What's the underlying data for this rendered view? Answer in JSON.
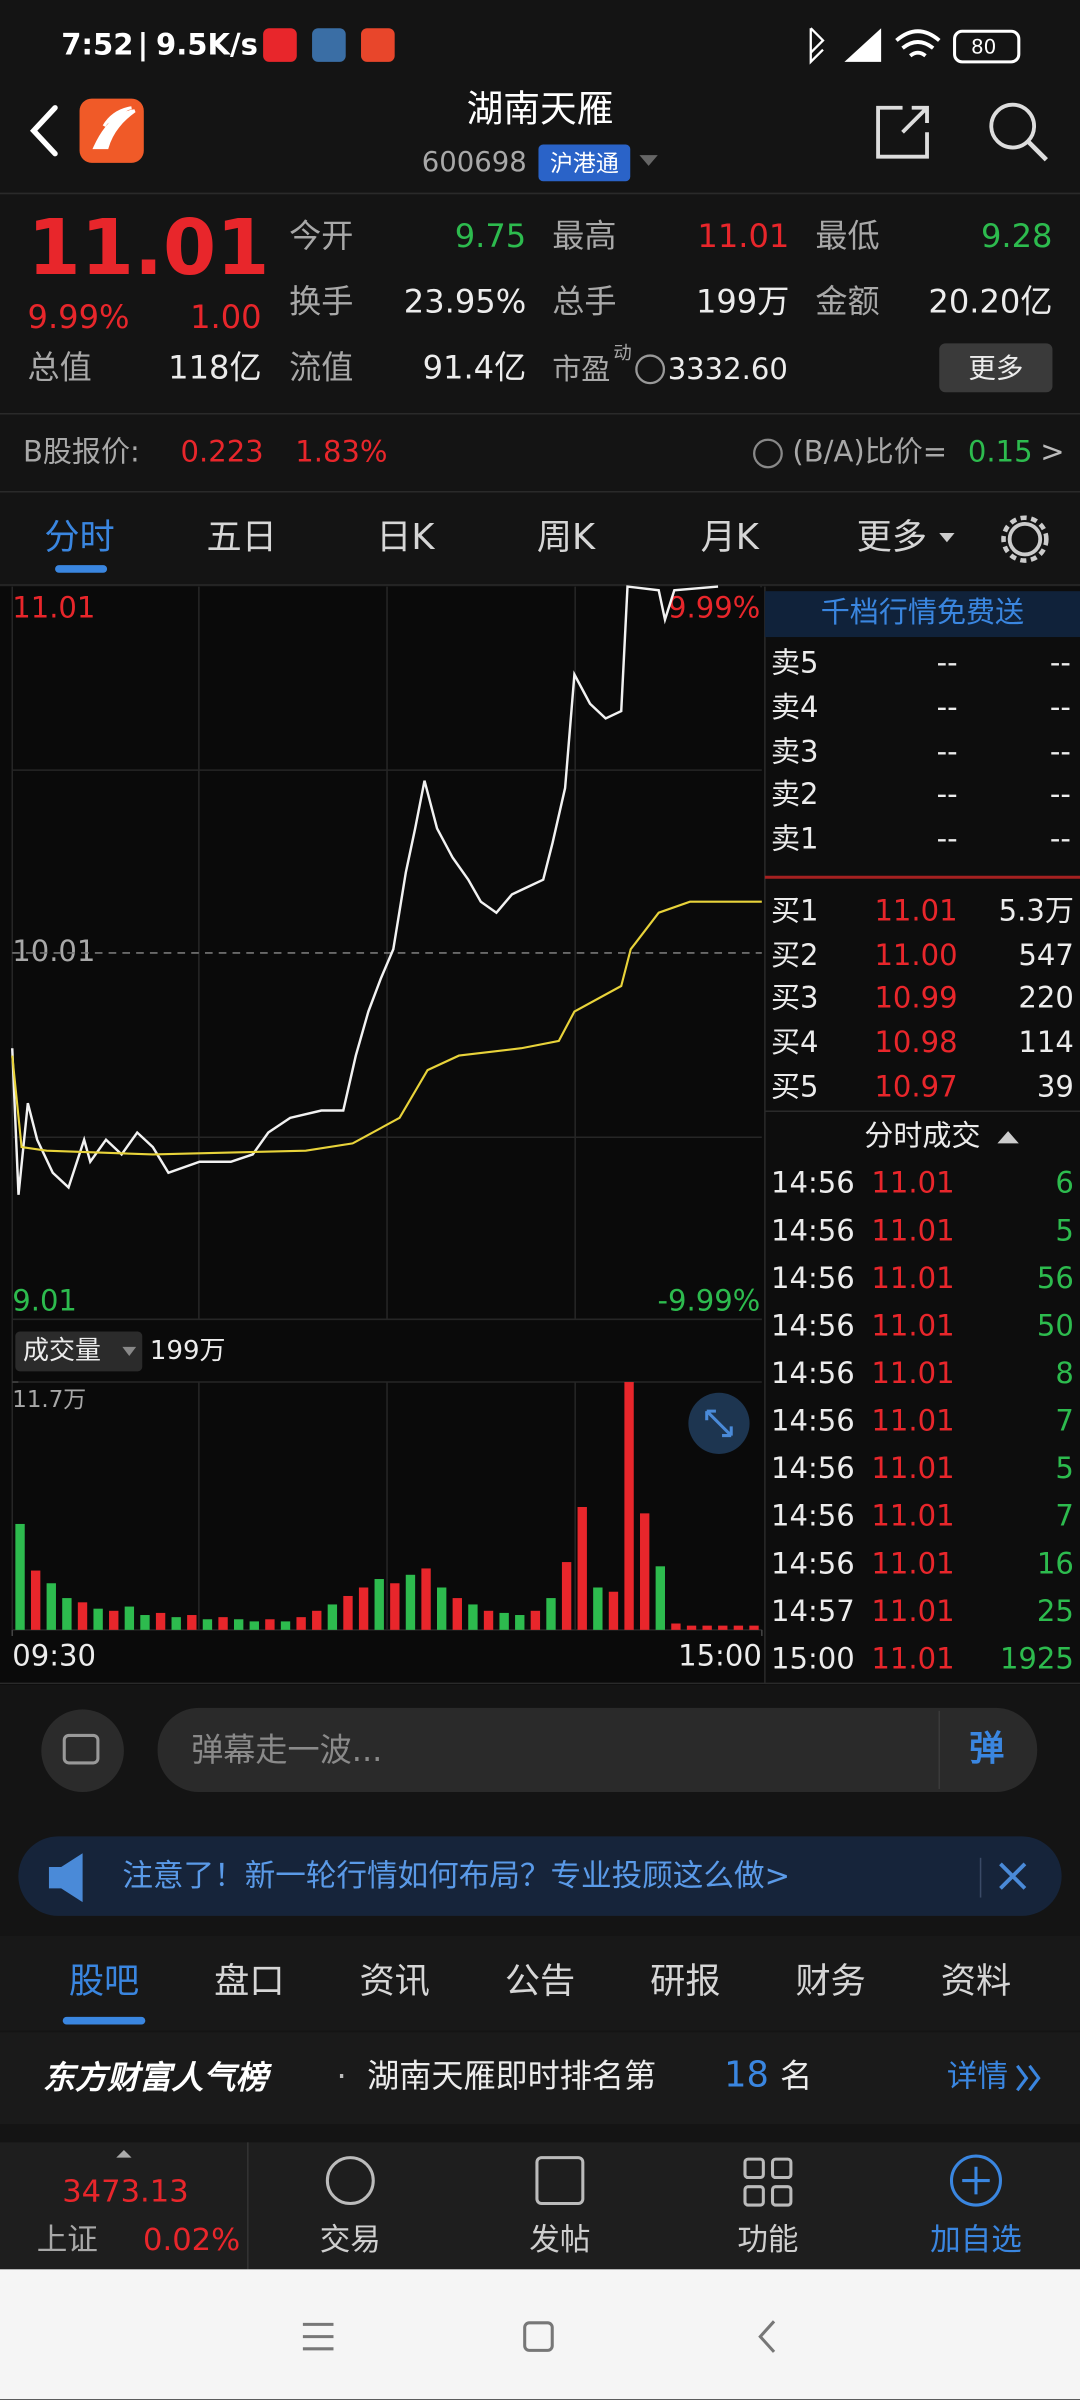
{
  "status": {
    "time": "7:52",
    "speed": "9.5K/s",
    "battery": "80"
  },
  "header": {
    "title": "湖南天雁",
    "code": "600698",
    "badge": "沪港通"
  },
  "quote": {
    "price": "11.01",
    "change_pct": "9.99%",
    "change": "1.00",
    "open": {
      "label": "今开",
      "value": "9.75"
    },
    "high": {
      "label": "最高",
      "value": "11.01"
    },
    "low": {
      "label": "最低",
      "value": "9.28"
    },
    "turnover": {
      "label": "换手",
      "value": "23.95%"
    },
    "volume": {
      "label": "总手",
      "value": "199万"
    },
    "amount": {
      "label": "金额",
      "value": "20.20亿"
    },
    "total_cap": {
      "label": "总值",
      "value": "118亿"
    },
    "float_cap": {
      "label": "流值",
      "value": "91.4亿"
    },
    "pe": {
      "label": "市盈",
      "sup": "动",
      "value": "3332.60"
    },
    "more": "更多"
  },
  "b_share": {
    "label": "B股报价:",
    "price": "0.223",
    "pct": "1.83%",
    "ratio_label": "(B/A)比价=",
    "ratio": "0.15"
  },
  "chart_tabs": [
    "分时",
    "五日",
    "日K",
    "周K",
    "月K",
    "更多"
  ],
  "chart_data": {
    "type": "line",
    "xlim": [
      0,
      240
    ],
    "xticks": [
      {
        "value": 0,
        "label": "09:30"
      },
      {
        "value": 240,
        "label": "15:00"
      }
    ],
    "ylim": [
      9.01,
      11.01
    ],
    "yticks": [
      9.01,
      10.01,
      11.01
    ],
    "y2lim": [
      -9.99,
      9.99
    ],
    "y2ticks": [
      {
        "value": -9.99,
        "label": "-9.99%"
      },
      {
        "value": 9.99,
        "label": "9.99%"
      }
    ],
    "series": [
      {
        "color": "#f2f2f2",
        "x": [
          0,
          2,
          5,
          8,
          13,
          18,
          23,
          25,
          30,
          35,
          40,
          45,
          50,
          60,
          70,
          77,
          82,
          89,
          99,
          106,
          110,
          114,
          118,
          122,
          126,
          129,
          132,
          136,
          141,
          146,
          150,
          155,
          160,
          165,
          170,
          173,
          177,
          180,
          185,
          190,
          195,
          197,
          207,
          209,
          212,
          226
        ],
        "values": [
          9.75,
          9.35,
          9.6,
          9.5,
          9.41,
          9.37,
          9.5,
          9.44,
          9.5,
          9.46,
          9.52,
          9.48,
          9.41,
          9.44,
          9.44,
          9.46,
          9.52,
          9.56,
          9.58,
          9.58,
          9.73,
          9.85,
          9.94,
          10.02,
          10.23,
          10.35,
          10.48,
          10.35,
          10.27,
          10.21,
          10.15,
          10.12,
          10.17,
          10.19,
          10.21,
          10.31,
          10.46,
          10.77,
          10.69,
          10.65,
          10.67,
          11.01,
          11.0,
          10.92,
          11.0,
          11.01
        ]
      },
      {
        "color": "#e8d33a",
        "x": [
          0,
          3,
          11,
          45,
          94,
          109,
          124,
          133,
          143,
          163,
          175,
          180,
          195,
          198,
          207,
          217,
          240
        ],
        "values": [
          9.73,
          9.48,
          9.47,
          9.46,
          9.47,
          9.49,
          9.56,
          9.69,
          9.73,
          9.75,
          9.77,
          9.85,
          9.92,
          10.02,
          10.12,
          10.15,
          10.15
        ]
      }
    ],
    "volume": {
      "label": "成交量",
      "total": "199万",
      "ylim": [
        0,
        11.7
      ],
      "yticks": [
        {
          "value": 11.7,
          "label": "11.7万"
        }
      ],
      "values": [
        5.0,
        2.8,
        2.2,
        1.5,
        1.3,
        1.0,
        0.9,
        1.1,
        0.7,
        0.8,
        0.6,
        0.7,
        0.5,
        0.6,
        0.5,
        0.4,
        0.5,
        0.4,
        0.6,
        0.9,
        1.2,
        1.6,
        2.0,
        2.4,
        2.2,
        2.6,
        2.9,
        2.0,
        1.5,
        1.2,
        0.9,
        0.8,
        0.7,
        0.9,
        1.5,
        3.2,
        5.8,
        2.0,
        1.8,
        11.7,
        5.5,
        3.0,
        0.3,
        0.2,
        0.2,
        0.2,
        0.2,
        0.2
      ],
      "colors": [
        "#2dbb4e",
        "#e8262b",
        "#2dbb4e",
        "#2dbb4e",
        "#e8262b",
        "#2dbb4e",
        "#e8262b",
        "#2dbb4e",
        "#2dbb4e",
        "#e8262b",
        "#2dbb4e",
        "#e8262b",
        "#2dbb4e",
        "#e8262b",
        "#2dbb4e",
        "#2dbb4e",
        "#e8262b",
        "#2dbb4e",
        "#e8262b",
        "#e8262b",
        "#2dbb4e",
        "#e8262b",
        "#e8262b",
        "#2dbb4e",
        "#e8262b",
        "#2dbb4e",
        "#e8262b",
        "#2dbb4e",
        "#e8262b",
        "#2dbb4e",
        "#e8262b",
        "#2dbb4e",
        "#2dbb4e",
        "#e8262b",
        "#2dbb4e",
        "#e8262b",
        "#e8262b",
        "#2dbb4e",
        "#e8262b",
        "#e8262b",
        "#e8262b",
        "#2dbb4e",
        "#e8262b",
        "#e8262b",
        "#e8262b",
        "#e8262b",
        "#e8262b",
        "#e8262b"
      ]
    }
  },
  "order_book": {
    "promo": "千档行情免费送",
    "sell": [
      {
        "label": "卖5",
        "price": "--",
        "volume": "--"
      },
      {
        "label": "卖4",
        "price": "--",
        "volume": "--"
      },
      {
        "label": "卖3",
        "price": "--",
        "volume": "--"
      },
      {
        "label": "卖2",
        "price": "--",
        "volume": "--"
      },
      {
        "label": "卖1",
        "price": "--",
        "volume": "--"
      }
    ],
    "buy": [
      {
        "label": "买1",
        "price": "11.01",
        "volume": "5.3万"
      },
      {
        "label": "买2",
        "price": "11.00",
        "volume": "547"
      },
      {
        "label": "买3",
        "price": "10.99",
        "volume": "220"
      },
      {
        "label": "买4",
        "price": "10.98",
        "volume": "114"
      },
      {
        "label": "买5",
        "price": "10.97",
        "volume": "39"
      }
    ]
  },
  "trades": {
    "title": "分时成交",
    "rows": [
      [
        "14:56",
        "11.01",
        "6"
      ],
      [
        "14:56",
        "11.01",
        "5"
      ],
      [
        "14:56",
        "11.01",
        "56"
      ],
      [
        "14:56",
        "11.01",
        "50"
      ],
      [
        "14:56",
        "11.01",
        "8"
      ],
      [
        "14:56",
        "11.01",
        "7"
      ],
      [
        "14:56",
        "11.01",
        "5"
      ],
      [
        "14:56",
        "11.01",
        "7"
      ],
      [
        "14:56",
        "11.01",
        "16"
      ],
      [
        "14:57",
        "11.01",
        "25"
      ],
      [
        "15:00",
        "11.01",
        "1925"
      ]
    ]
  },
  "danmu": {
    "placeholder": "弹幕走一波...",
    "button": "弹"
  },
  "notice": "注意了！新一轮行情如何布局？专业投顾这么做>",
  "tabs": [
    "股吧",
    "盘口",
    "资讯",
    "公告",
    "研报",
    "财务",
    "资料"
  ],
  "rank": {
    "brand": "东方财富人气榜",
    "text": "湖南天雁即时排名第",
    "rank": "18",
    "suffix": "名",
    "link": "详情"
  },
  "bottom_nav": {
    "index_value": "3473.13",
    "index_name": "上证",
    "index_pct": "0.02%",
    "items": [
      "交易",
      "发帖",
      "功能",
      "加自选"
    ]
  }
}
